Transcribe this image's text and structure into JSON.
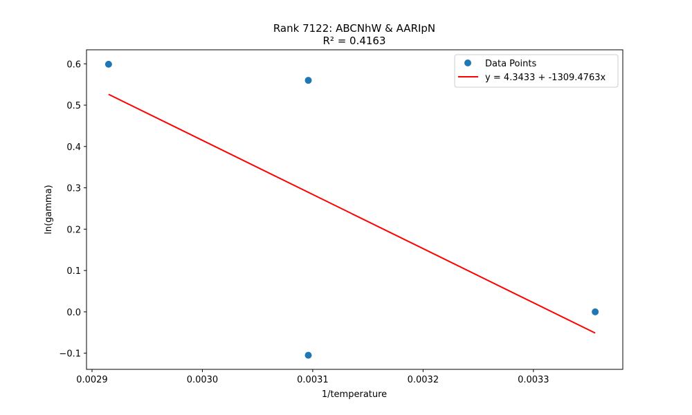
{
  "chart_data": {
    "type": "scatter",
    "title_lines": [
      "Rank 7122: ABCNhW & AARIpN",
      "R² = 0.4163"
    ],
    "xlabel": "1/temperature",
    "ylabel": "ln(gamma)",
    "xlim": [
      0.002895,
      0.003381
    ],
    "ylim": [
      -0.1391,
      0.6339
    ],
    "xticks": [
      0.0029,
      0.003,
      0.0031,
      0.0032,
      0.0033
    ],
    "xtick_labels": [
      "0.0029",
      "0.0030",
      "0.0031",
      "0.0032",
      "0.0033"
    ],
    "yticks": [
      -0.1,
      0.0,
      0.1,
      0.2,
      0.3,
      0.4,
      0.5,
      0.6
    ],
    "ytick_labels": [
      "−0.1",
      "0.0",
      "0.1",
      "0.2",
      "0.3",
      "0.4",
      "0.5",
      "0.6"
    ],
    "grid": false,
    "legend_position": "top-right",
    "series": [
      {
        "name": "Data Points",
        "kind": "scatter",
        "color": "#1f77b4",
        "points": [
          {
            "x": 0.002915,
            "y": 0.599
          },
          {
            "x": 0.003096,
            "y": 0.56
          },
          {
            "x": 0.003096,
            "y": -0.105
          },
          {
            "x": 0.003356,
            "y": 0.0
          }
        ]
      },
      {
        "name": "y = 4.3433 + -1309.4763x",
        "kind": "line",
        "color": "#ff0000",
        "intercept": 4.3433,
        "slope": -1309.4763,
        "x_range": [
          0.002915,
          0.003356
        ]
      }
    ]
  }
}
